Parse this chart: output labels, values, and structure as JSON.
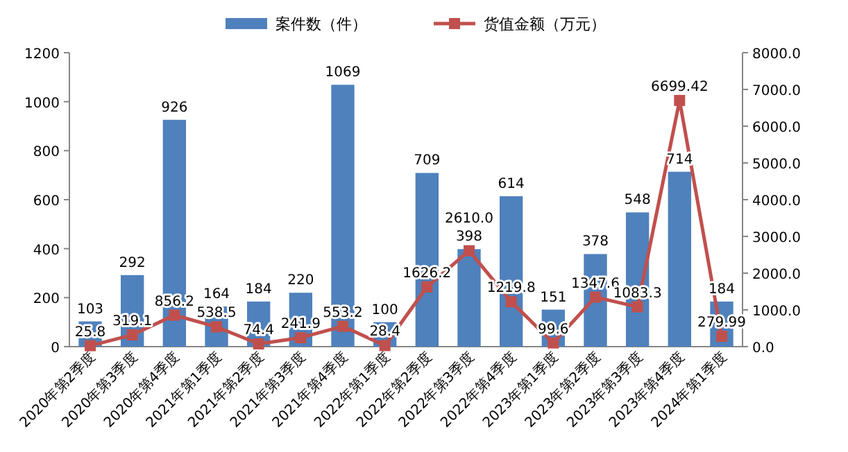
{
  "chart_data": {
    "type": "bar",
    "categories": [
      "2020年第2季度",
      "2020年第3季度",
      "2020年第4季度",
      "2021年第1季度",
      "2021年第2季度",
      "2021年第3季度",
      "2021年第4季度",
      "2022年第1季度",
      "2022年第2季度",
      "2022年第3季度",
      "2022年第4季度",
      "2023年第1季度",
      "2023年第2季度",
      "2023年第3季度",
      "2023年第4季度",
      "2024年第1季度"
    ],
    "series": [
      {
        "name": "案件数（件）",
        "color": "#4f81bd",
        "values": [
          103,
          292,
          926,
          164,
          184,
          220,
          1069,
          100,
          709,
          398,
          614,
          151,
          378,
          548,
          714,
          184
        ]
      },
      {
        "name": "货值金额（万元）",
        "type": "line",
        "axis": "y2",
        "color": "#c0504d",
        "marker": "square",
        "values": [
          25.8,
          319.1,
          856.2,
          538.5,
          74.4,
          241.9,
          553.2,
          28.4,
          1626.2,
          2610.0,
          1219.8,
          99.6,
          1347.6,
          1083.3,
          6699.42,
          279.99
        ],
        "value_labels": [
          "25.8",
          "319.1",
          "856.2",
          "538.5",
          "74.4",
          "241.9",
          "553.2",
          "28.4",
          "1626.2",
          "2610.0",
          "1219.8",
          "99.6",
          "1347.6",
          "1083.3",
          "6699.42",
          "279.99"
        ]
      }
    ],
    "data_labels": true,
    "ylim": [
      0,
      1200
    ],
    "yticks": [
      0,
      200,
      400,
      600,
      800,
      1000,
      1200
    ],
    "y2lim": [
      0,
      8000
    ],
    "y2ticks": [
      {
        "value": 0,
        "label": "0.0"
      },
      {
        "value": 1000,
        "label": "1000.0"
      },
      {
        "value": 2000,
        "label": "2000.0"
      },
      {
        "value": 3000,
        "label": "3000.0"
      },
      {
        "value": 4000,
        "label": "4000.0"
      },
      {
        "value": 5000,
        "label": "5000.0"
      },
      {
        "value": 6000,
        "label": "6000.0"
      },
      {
        "value": 7000,
        "label": "7000.0"
      },
      {
        "value": 8000,
        "label": "8000.0"
      }
    ],
    "legend": "top"
  }
}
